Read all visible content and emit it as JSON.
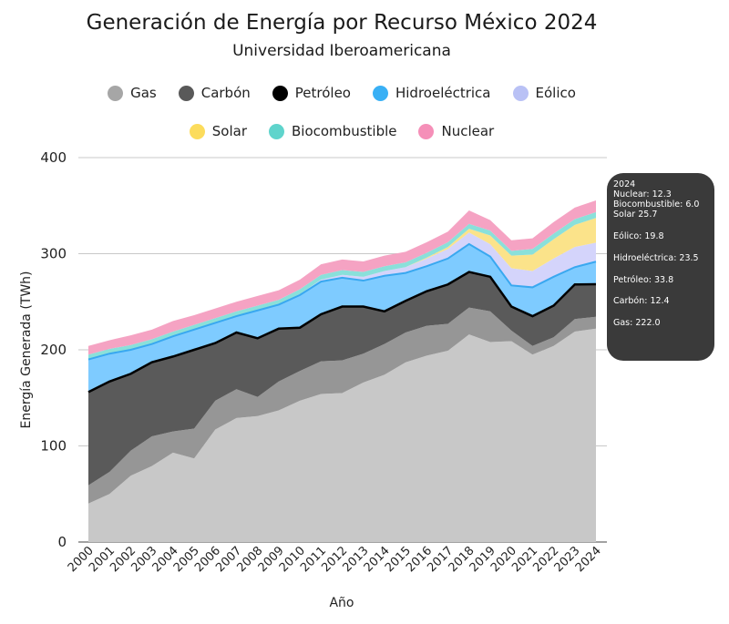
{
  "chart_data": {
    "type": "area",
    "stacked": true,
    "title": "Generación de Energía por Recurso México 2024",
    "subtitle": "Universidad Iberoamericana",
    "xlabel": "Año",
    "ylabel": "Energía Generada (TWh)",
    "ylim": [
      0,
      400
    ],
    "yticks": [
      0,
      100,
      200,
      300,
      400
    ],
    "grid": true,
    "legend_position": "top",
    "x": [
      "2000",
      "2001",
      "2002",
      "2003",
      "2004",
      "2005",
      "2006",
      "2007",
      "2008",
      "2009",
      "2010",
      "2011",
      "2012",
      "2013",
      "2014",
      "2015",
      "2016",
      "2017",
      "2018",
      "2019",
      "2020",
      "2021",
      "2022",
      "2023",
      "2024"
    ],
    "series": [
      {
        "name": "Gas",
        "color": "#c8c8c8",
        "legend_color": "#a6a6a6",
        "values": [
          40,
          50,
          69,
          79,
          93,
          87,
          117,
          129,
          131,
          137,
          147,
          154,
          155,
          166,
          174,
          187,
          194,
          199,
          216,
          208,
          209,
          195,
          204,
          219,
          222.0
        ]
      },
      {
        "name": "Carbón",
        "color": "#969696",
        "legend_color": "#595959",
        "values": [
          19,
          23,
          26,
          31,
          22,
          31,
          30,
          30,
          20,
          30,
          31,
          34,
          34,
          30,
          32,
          31,
          31,
          28,
          28,
          32,
          11,
          9,
          9,
          13,
          12.4
        ]
      },
      {
        "name": "Petróleo",
        "color": "#5a5a5a",
        "legend_color": "#000000",
        "line_color": "#000000",
        "values": [
          97,
          94,
          80,
          77,
          78,
          82,
          60,
          59,
          61,
          55,
          45,
          49,
          56,
          49,
          34,
          33,
          36,
          41,
          37,
          36,
          25,
          31,
          33,
          36,
          33.8
        ]
      },
      {
        "name": "Hidroeléctrica",
        "color": "#7ecbff",
        "legend_color": "#39b0f5",
        "line_color": "#39a8f0",
        "values": [
          34,
          29,
          25,
          19,
          21,
          21,
          21,
          17,
          29,
          25,
          34,
          34,
          30,
          27,
          37,
          29,
          26,
          27,
          29,
          21,
          22,
          30,
          30,
          18,
          23.5
        ]
      },
      {
        "name": "Eólico",
        "color": "#d4d4fb",
        "legend_color": "#b9c1f5",
        "values": [
          0,
          0,
          0,
          0,
          0,
          0,
          0,
          0,
          0,
          0,
          1,
          2,
          3,
          4,
          5,
          6,
          8,
          10,
          12,
          13,
          18,
          17,
          19,
          21,
          19.8
        ]
      },
      {
        "name": "Solar",
        "color": "#fbe38a",
        "legend_color": "#fcdc5c",
        "values": [
          0,
          0,
          0,
          0,
          0,
          0,
          0,
          0,
          0,
          0,
          0,
          0,
          0,
          0,
          0,
          0,
          1,
          2,
          4,
          9,
          13,
          17,
          20,
          23,
          25.7
        ]
      },
      {
        "name": "Biocombustible",
        "color": "#8ae0da",
        "legend_color": "#5fd4cc",
        "values": [
          5,
          5,
          5,
          5,
          5,
          5,
          5,
          5,
          5,
          5,
          5,
          5,
          5,
          5,
          5,
          5,
          5,
          5,
          5,
          5,
          5,
          6,
          6,
          6,
          6.0
        ]
      },
      {
        "name": "Nuclear",
        "color": "#f5a3c3",
        "legend_color": "#f58fb8",
        "values": [
          9,
          9,
          10,
          10,
          11,
          10,
          10,
          10,
          10,
          10,
          10,
          11,
          11,
          11,
          11,
          11,
          11,
          11,
          14,
          11,
          11,
          11,
          12,
          12,
          12.3
        ]
      }
    ],
    "tooltip": {
      "year": "2024",
      "lines": [
        "Nuclear: 12.3",
        "Biocombustible: 6.0",
        "Solar 25.7",
        "Eólico: 19.8",
        "Hidroeléctrica: 23.5",
        "Petróleo: 33.8",
        "Carbón: 12.4",
        "Gas: 222.0"
      ]
    }
  },
  "legend": {
    "row1": [
      {
        "label": "Gas",
        "color": "#a6a6a6"
      },
      {
        "label": "Carbón",
        "color": "#595959"
      },
      {
        "label": "Petróleo",
        "color": "#000000"
      },
      {
        "label": "Hidroeléctrica",
        "color": "#39b0f5"
      },
      {
        "label": "Eólico",
        "color": "#b9c1f5"
      }
    ],
    "row2": [
      {
        "label": "Solar",
        "color": "#fcdc5c"
      },
      {
        "label": "Biocombustible",
        "color": "#5fd4cc"
      },
      {
        "label": "Nuclear",
        "color": "#f58fb8"
      }
    ]
  }
}
